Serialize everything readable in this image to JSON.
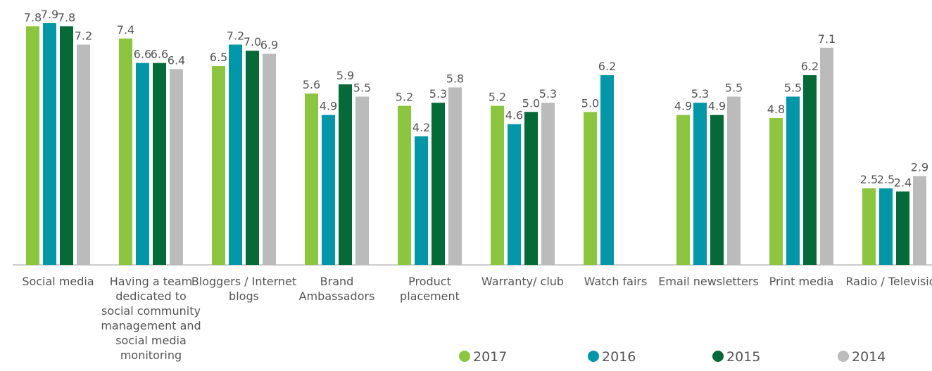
{
  "chart_data": {
    "type": "bar",
    "categories": [
      "Social media",
      "Having a team dedicated to social community management and social media monitoring",
      "Bloggers / Internet blogs",
      "Brand Ambassadors",
      "Product placement",
      "Warranty/ club",
      "Watch fairs",
      "Email newsletters",
      "Print media",
      "Radio / Television"
    ],
    "series": [
      {
        "name": "2017",
        "color": "#8cc63f",
        "values": [
          7.8,
          7.4,
          6.5,
          5.6,
          5.2,
          5.2,
          5.0,
          4.9,
          4.8,
          2.5
        ],
        "value_labels": [
          "7.8",
          "7.4",
          "6.5",
          "5.6",
          "5.2",
          "5.2",
          "5.0",
          "4.9",
          "4.8",
          "2.5"
        ]
      },
      {
        "name": "2016",
        "color": "#0097a9",
        "values": [
          7.9,
          6.6,
          7.2,
          4.9,
          4.2,
          4.6,
          6.2,
          5.3,
          5.5,
          2.5
        ],
        "value_labels": [
          "7.9",
          "6.6",
          "7.2",
          "4.9",
          "4.2",
          "4.6",
          "6.2",
          "5.3",
          "5.5",
          "2.5"
        ]
      },
      {
        "name": "2015",
        "color": "#046a38",
        "values": [
          7.8,
          6.6,
          7.0,
          5.9,
          5.3,
          5.0,
          null,
          4.9,
          6.2,
          2.4
        ],
        "value_labels": [
          "7.8",
          "6.6",
          "7.0",
          "5.9",
          "5.3",
          "5.0",
          null,
          "4.9",
          "6.2",
          "2.4"
        ]
      },
      {
        "name": "2014",
        "color": "#bbbbbb",
        "values": [
          7.2,
          6.4,
          6.9,
          5.5,
          5.8,
          5.3,
          null,
          5.5,
          7.1,
          2.9
        ],
        "value_labels": [
          "7.2",
          "6.4",
          "6.9",
          "5.5",
          "5.8",
          "5.3",
          null,
          "5.5",
          "7.1",
          "2.9"
        ]
      }
    ]
  }
}
